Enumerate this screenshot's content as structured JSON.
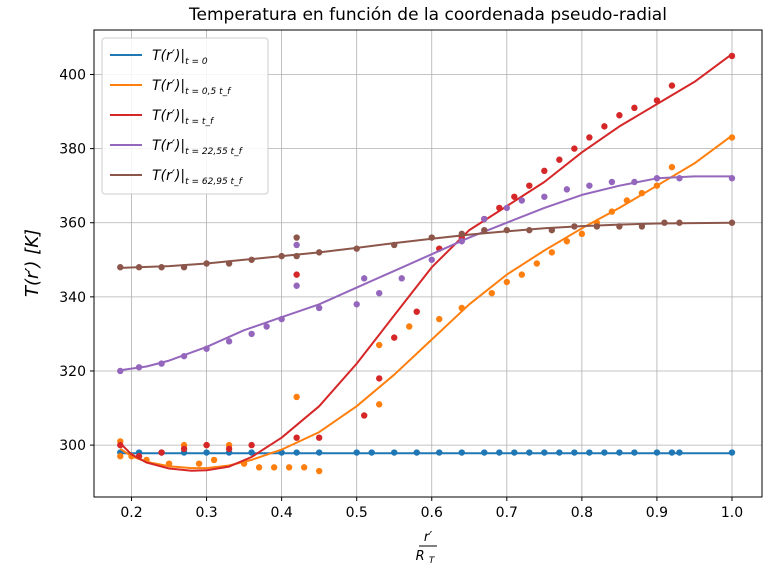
{
  "chart_data": {
    "type": "scatter",
    "title": "Temperatura en función de la coordenada pseudo-radial",
    "ylabel": "T(r′) [K]",
    "xlabel_numerator": "r′",
    "xlabel_denominator": "R",
    "xlabel_denominator_sub": "T",
    "xlim": [
      0.15,
      1.04
    ],
    "ylim": [
      286,
      412
    ],
    "xticks": [
      0.2,
      0.3,
      0.4,
      0.5,
      0.6,
      0.7,
      0.8,
      0.9,
      1.0
    ],
    "xtick_labels": [
      "0.2",
      "0.3",
      "0.4",
      "0.5",
      "0.6",
      "0.7",
      "0.8",
      "0.9",
      "1.0"
    ],
    "yticks": [
      300,
      320,
      340,
      360,
      380,
      400
    ],
    "ytick_labels": [
      "300",
      "320",
      "340",
      "360",
      "380",
      "400"
    ],
    "grid": true,
    "legend_position": "top-left",
    "series": [
      {
        "name": "T(r′)",
        "subscript": "t = 0",
        "color": "#1f77b4",
        "curve": [
          [
            0.185,
            297.8
          ],
          [
            1.0,
            297.8
          ]
        ],
        "points": [
          [
            0.185,
            298
          ],
          [
            0.21,
            298
          ],
          [
            0.24,
            298
          ],
          [
            0.27,
            298
          ],
          [
            0.3,
            298
          ],
          [
            0.33,
            298
          ],
          [
            0.36,
            298
          ],
          [
            0.4,
            298
          ],
          [
            0.42,
            298
          ],
          [
            0.45,
            298
          ],
          [
            0.5,
            298
          ],
          [
            0.52,
            298
          ],
          [
            0.55,
            298
          ],
          [
            0.58,
            298
          ],
          [
            0.61,
            298
          ],
          [
            0.64,
            298
          ],
          [
            0.67,
            298
          ],
          [
            0.69,
            298
          ],
          [
            0.71,
            298
          ],
          [
            0.73,
            298
          ],
          [
            0.75,
            298
          ],
          [
            0.77,
            298
          ],
          [
            0.79,
            298
          ],
          [
            0.81,
            298
          ],
          [
            0.83,
            298
          ],
          [
            0.85,
            298
          ],
          [
            0.87,
            298
          ],
          [
            0.9,
            298
          ],
          [
            0.92,
            298
          ],
          [
            0.93,
            298
          ],
          [
            1.0,
            298
          ]
        ]
      },
      {
        "name": "T(r′)",
        "subscript": "t = 0,5 t_f",
        "color": "#ff7f0e",
        "curve": [
          [
            0.185,
            299
          ],
          [
            0.2,
            297
          ],
          [
            0.22,
            295.5
          ],
          [
            0.25,
            294.3
          ],
          [
            0.28,
            293.8
          ],
          [
            0.3,
            293.8
          ],
          [
            0.33,
            294.5
          ],
          [
            0.36,
            296
          ],
          [
            0.4,
            298.8
          ],
          [
            0.45,
            303.5
          ],
          [
            0.5,
            310.5
          ],
          [
            0.55,
            319
          ],
          [
            0.6,
            328.5
          ],
          [
            0.65,
            338
          ],
          [
            0.7,
            346
          ],
          [
            0.75,
            352.5
          ],
          [
            0.8,
            358.5
          ],
          [
            0.85,
            364
          ],
          [
            0.9,
            370
          ],
          [
            0.95,
            376
          ],
          [
            1.0,
            383.5
          ]
        ],
        "points": [
          [
            0.185,
            297
          ],
          [
            0.185,
            301
          ],
          [
            0.2,
            297
          ],
          [
            0.22,
            296
          ],
          [
            0.25,
            295
          ],
          [
            0.27,
            300
          ],
          [
            0.29,
            295
          ],
          [
            0.3,
            300
          ],
          [
            0.31,
            296
          ],
          [
            0.33,
            300
          ],
          [
            0.35,
            295
          ],
          [
            0.37,
            294
          ],
          [
            0.39,
            294
          ],
          [
            0.41,
            294
          ],
          [
            0.42,
            313
          ],
          [
            0.43,
            294
          ],
          [
            0.45,
            293
          ],
          [
            0.53,
            311
          ],
          [
            0.53,
            327
          ],
          [
            0.57,
            332
          ],
          [
            0.61,
            334
          ],
          [
            0.64,
            337
          ],
          [
            0.68,
            341
          ],
          [
            0.7,
            344
          ],
          [
            0.72,
            346
          ],
          [
            0.74,
            349
          ],
          [
            0.76,
            352
          ],
          [
            0.78,
            355
          ],
          [
            0.8,
            357
          ],
          [
            0.82,
            360
          ],
          [
            0.84,
            363
          ],
          [
            0.86,
            366
          ],
          [
            0.88,
            368
          ],
          [
            0.9,
            370
          ],
          [
            0.92,
            375
          ],
          [
            1.0,
            383
          ]
        ]
      },
      {
        "name": "T(r′)",
        "subscript": "t = t_f",
        "color": "#d62728",
        "curve": [
          [
            0.185,
            300.5
          ],
          [
            0.2,
            297.5
          ],
          [
            0.22,
            295.3
          ],
          [
            0.25,
            293.7
          ],
          [
            0.28,
            293.1
          ],
          [
            0.3,
            293.2
          ],
          [
            0.33,
            294.2
          ],
          [
            0.36,
            296.8
          ],
          [
            0.4,
            302
          ],
          [
            0.45,
            310.5
          ],
          [
            0.5,
            322
          ],
          [
            0.55,
            335
          ],
          [
            0.6,
            348
          ],
          [
            0.65,
            358
          ],
          [
            0.7,
            364.5
          ],
          [
            0.75,
            371
          ],
          [
            0.8,
            379
          ],
          [
            0.85,
            386
          ],
          [
            0.9,
            392
          ],
          [
            0.95,
            398
          ],
          [
            1.0,
            405.5
          ]
        ],
        "points": [
          [
            0.185,
            300
          ],
          [
            0.21,
            297
          ],
          [
            0.24,
            298
          ],
          [
            0.27,
            299
          ],
          [
            0.3,
            300
          ],
          [
            0.33,
            299
          ],
          [
            0.36,
            300
          ],
          [
            0.42,
            346
          ],
          [
            0.42,
            302
          ],
          [
            0.45,
            302
          ],
          [
            0.51,
            308
          ],
          [
            0.53,
            318
          ],
          [
            0.55,
            329
          ],
          [
            0.58,
            336
          ],
          [
            0.61,
            353
          ],
          [
            0.64,
            356
          ],
          [
            0.67,
            361
          ],
          [
            0.69,
            364
          ],
          [
            0.71,
            367
          ],
          [
            0.73,
            370
          ],
          [
            0.75,
            374
          ],
          [
            0.77,
            377
          ],
          [
            0.79,
            380
          ],
          [
            0.81,
            383
          ],
          [
            0.83,
            386
          ],
          [
            0.85,
            389
          ],
          [
            0.87,
            391
          ],
          [
            0.9,
            393
          ],
          [
            0.92,
            397
          ],
          [
            1.0,
            405
          ]
        ]
      },
      {
        "name": "T(r′)",
        "subscript": "t = 22,55 t_f",
        "color": "#9467bd",
        "curve": [
          [
            0.185,
            320.2
          ],
          [
            0.22,
            321.2
          ],
          [
            0.25,
            322.8
          ],
          [
            0.3,
            326.5
          ],
          [
            0.35,
            331
          ],
          [
            0.4,
            334.5
          ],
          [
            0.45,
            338
          ],
          [
            0.5,
            342.5
          ],
          [
            0.55,
            347
          ],
          [
            0.6,
            351.5
          ],
          [
            0.65,
            356
          ],
          [
            0.7,
            360
          ],
          [
            0.75,
            364
          ],
          [
            0.8,
            367.5
          ],
          [
            0.85,
            370
          ],
          [
            0.9,
            372
          ],
          [
            0.95,
            372.5
          ],
          [
            1.0,
            372.5
          ]
        ],
        "points": [
          [
            0.185,
            320
          ],
          [
            0.21,
            321
          ],
          [
            0.24,
            322
          ],
          [
            0.27,
            324
          ],
          [
            0.3,
            326
          ],
          [
            0.33,
            328
          ],
          [
            0.36,
            330
          ],
          [
            0.38,
            332
          ],
          [
            0.4,
            334
          ],
          [
            0.42,
            343
          ],
          [
            0.42,
            354
          ],
          [
            0.45,
            337
          ],
          [
            0.5,
            338
          ],
          [
            0.51,
            345
          ],
          [
            0.53,
            341
          ],
          [
            0.56,
            345
          ],
          [
            0.6,
            350
          ],
          [
            0.64,
            355
          ],
          [
            0.67,
            361
          ],
          [
            0.7,
            364
          ],
          [
            0.72,
            366
          ],
          [
            0.75,
            367
          ],
          [
            0.78,
            369
          ],
          [
            0.81,
            370
          ],
          [
            0.84,
            371
          ],
          [
            0.87,
            371
          ],
          [
            0.9,
            372
          ],
          [
            0.93,
            372
          ],
          [
            1.0,
            372
          ]
        ]
      },
      {
        "name": "T(r′)",
        "subscript": "t = 62,95 t_f",
        "color": "#8c564b",
        "curve": [
          [
            0.185,
            347.8
          ],
          [
            0.25,
            348.3
          ],
          [
            0.3,
            349
          ],
          [
            0.35,
            350
          ],
          [
            0.4,
            351
          ],
          [
            0.45,
            352
          ],
          [
            0.5,
            353.2
          ],
          [
            0.55,
            354.5
          ],
          [
            0.6,
            355.7
          ],
          [
            0.65,
            356.8
          ],
          [
            0.7,
            357.7
          ],
          [
            0.75,
            358.5
          ],
          [
            0.8,
            359.1
          ],
          [
            0.85,
            359.5
          ],
          [
            0.9,
            359.8
          ],
          [
            1.0,
            360
          ]
        ],
        "points": [
          [
            0.185,
            348
          ],
          [
            0.21,
            348
          ],
          [
            0.24,
            348
          ],
          [
            0.27,
            348
          ],
          [
            0.3,
            349
          ],
          [
            0.33,
            349
          ],
          [
            0.36,
            350
          ],
          [
            0.4,
            351
          ],
          [
            0.42,
            351
          ],
          [
            0.42,
            356
          ],
          [
            0.45,
            352
          ],
          [
            0.5,
            353
          ],
          [
            0.55,
            354
          ],
          [
            0.6,
            356
          ],
          [
            0.64,
            357
          ],
          [
            0.67,
            358
          ],
          [
            0.7,
            358
          ],
          [
            0.73,
            358
          ],
          [
            0.76,
            358
          ],
          [
            0.79,
            359
          ],
          [
            0.82,
            359
          ],
          [
            0.85,
            359
          ],
          [
            0.88,
            359
          ],
          [
            0.91,
            360
          ],
          [
            0.93,
            360
          ],
          [
            1.0,
            360
          ]
        ]
      }
    ]
  }
}
